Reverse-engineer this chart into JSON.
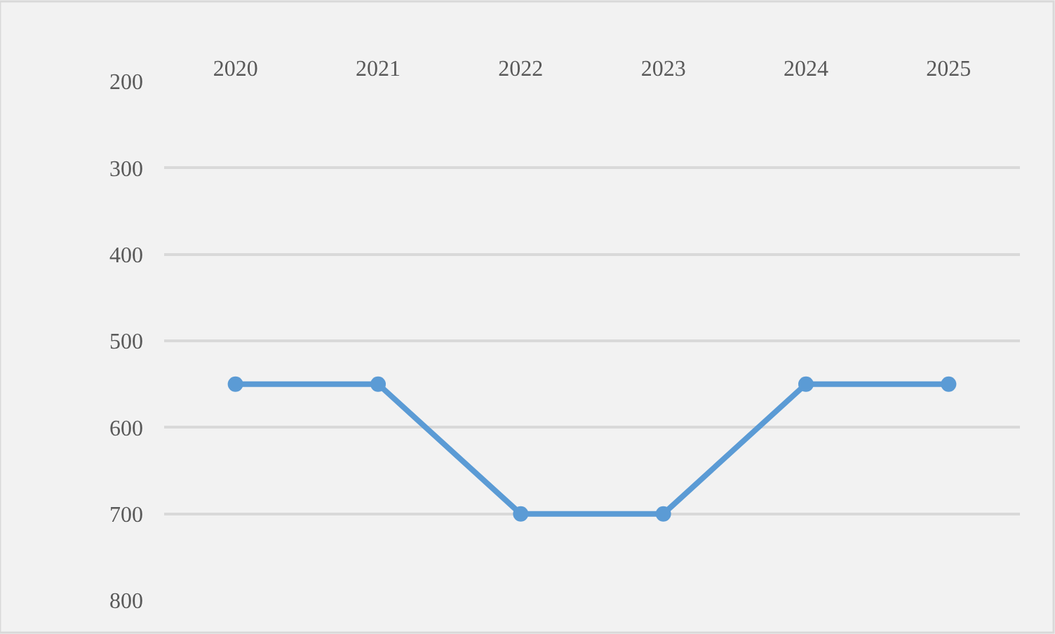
{
  "chart_data": {
    "type": "line",
    "categories": [
      "2020",
      "2021",
      "2022",
      "2023",
      "2024",
      "2025"
    ],
    "series": [
      {
        "color": "#5b9bd5",
        "values": [
          550,
          550,
          700,
          700,
          550,
          550
        ]
      }
    ],
    "ylim": [
      800,
      200
    ],
    "yticks": [
      200,
      300,
      400,
      500,
      600,
      700,
      800
    ],
    "grid": "y",
    "legend": false,
    "marker": "circle",
    "line_style": "solid"
  }
}
